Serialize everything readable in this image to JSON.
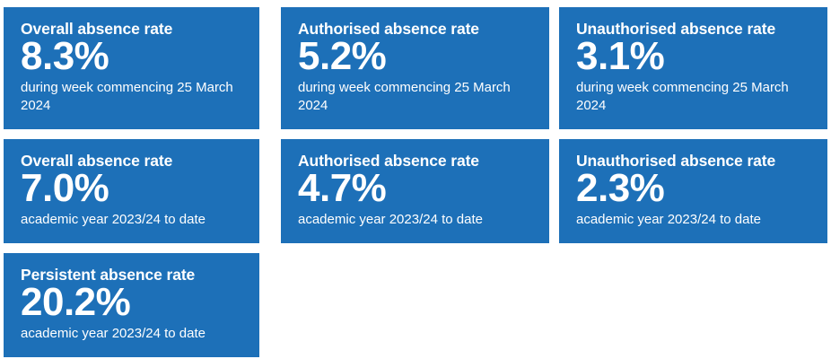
{
  "tiles": [
    {
      "title": "Overall absence rate",
      "value": "8.3%",
      "caption": "during week commencing 25 March 2024"
    },
    {
      "title": "Authorised absence rate",
      "value": "5.2%",
      "caption": "during week commencing 25 March 2024"
    },
    {
      "title": "Unauthorised absence rate",
      "value": "3.1%",
      "caption": "during week commencing 25 March 2024"
    },
    {
      "title": "Overall absence rate",
      "value": "7.0%",
      "caption": "academic year 2023/24 to date"
    },
    {
      "title": "Authorised absence rate",
      "value": "4.7%",
      "caption": "academic year 2023/24 to date"
    },
    {
      "title": "Unauthorised absence rate",
      "value": "2.3%",
      "caption": "academic year 2023/24 to date"
    },
    {
      "title": "Persistent absence rate",
      "value": "20.2%",
      "caption": "academic year 2023/24 to date"
    }
  ],
  "colors": {
    "tile_background": "#1d70b8",
    "tile_text": "#ffffff"
  }
}
